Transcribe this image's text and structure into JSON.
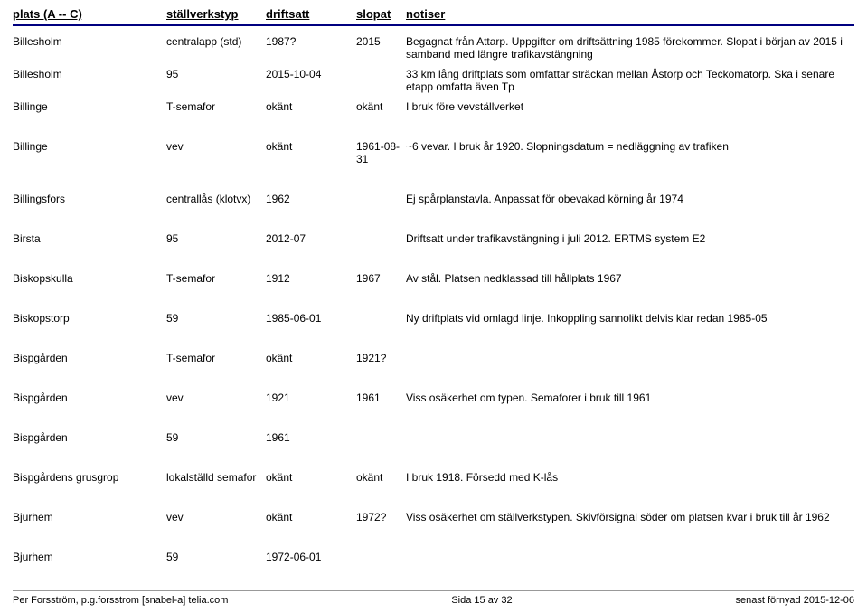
{
  "header": {
    "plats": "plats (A -- C)",
    "typ": "ställverkstyp",
    "drift": "driftsatt",
    "slop": "slopat",
    "not": "notiser"
  },
  "rows": [
    {
      "plats": "Billesholm",
      "typ": "centralapp (std)",
      "drift": "1987?",
      "slop": "2015",
      "not": "Begagnat från Attarp. Uppgifter om driftsättning 1985 förekommer. Slopat i början av 2015 i samband med längre trafikavstängning",
      "gap": false
    },
    {
      "plats": "Billesholm",
      "typ": "95",
      "drift": "2015-10-04",
      "slop": "",
      "not": "33 km lång driftplats som omfattar sträckan mellan Åstorp och Teckomatorp. Ska i senare etapp omfatta även Tp",
      "gap": false
    },
    {
      "plats": "Billinge",
      "typ": "T-semafor",
      "drift": "okänt",
      "slop": "okänt",
      "not": "I bruk före vevställverket",
      "gap": false
    },
    {
      "plats": "Billinge",
      "typ": "vev",
      "drift": "okänt",
      "slop": "1961-08-31",
      "not": "~6 vevar. I bruk år 1920. Slopningsdatum = nedläggning av trafiken",
      "gap": true
    },
    {
      "plats": "Billingsfors",
      "typ": "centrallås (klotvx)",
      "drift": "1962",
      "slop": "",
      "not": "Ej spårplanstavla. Anpassat för obevakad körning år 1974",
      "gap": true
    },
    {
      "plats": "Birsta",
      "typ": "95",
      "drift": "2012-07",
      "slop": "",
      "not": "Driftsatt under trafikavstängning i juli 2012. ERTMS system E2",
      "gap": true
    },
    {
      "plats": "Biskopskulla",
      "typ": "T-semafor",
      "drift": "1912",
      "slop": "1967",
      "not": "Av stål. Platsen nedklassad till hållplats 1967",
      "gap": true
    },
    {
      "plats": "Biskopstorp",
      "typ": "59",
      "drift": "1985-06-01",
      "slop": "",
      "not": "Ny driftplats vid omlagd linje. Inkoppling sannolikt delvis klar redan 1985-05",
      "gap": true
    },
    {
      "plats": "Bispgården",
      "typ": "T-semafor",
      "drift": "okänt",
      "slop": "1921?",
      "not": "",
      "gap": true
    },
    {
      "plats": "Bispgården",
      "typ": "vev",
      "drift": "1921",
      "slop": "1961",
      "not": "Viss osäkerhet om typen. Semaforer i bruk till 1961",
      "gap": true
    },
    {
      "plats": "Bispgården",
      "typ": "59",
      "drift": "1961",
      "slop": "",
      "not": "",
      "gap": true
    },
    {
      "plats": "Bispgårdens grusgrop",
      "typ": "lokalställd semafor",
      "drift": "okänt",
      "slop": "okänt",
      "not": "I bruk 1918. Försedd med K-lås",
      "gap": true
    },
    {
      "plats": "Bjurhem",
      "typ": "vev",
      "drift": "okänt",
      "slop": "1972?",
      "not": "Viss osäkerhet om ställverkstypen. Skivförsignal söder om platsen kvar i bruk till år 1962",
      "gap": true
    },
    {
      "plats": "Bjurhem",
      "typ": "59",
      "drift": "1972-06-01",
      "slop": "",
      "not": "",
      "gap": true
    }
  ],
  "footer": {
    "left": "Per Forsström, p.g.forsstrom [snabel-a] telia.com",
    "center": "Sida 15 av 32",
    "right": "senast förnyad 2015-12-06"
  }
}
